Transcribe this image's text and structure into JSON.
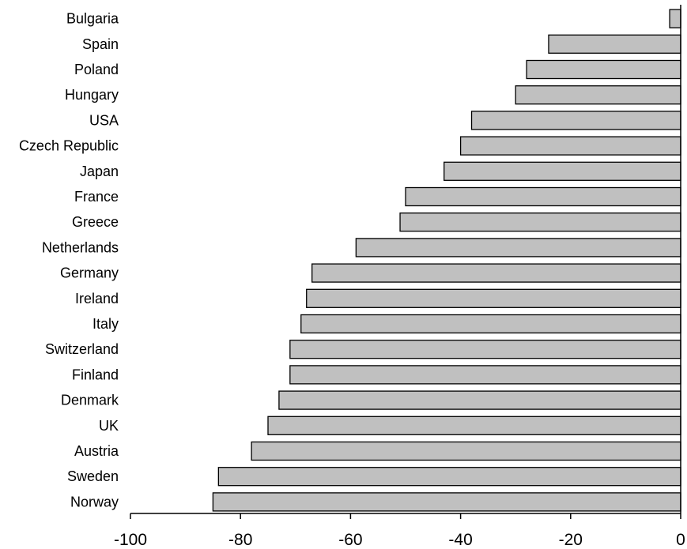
{
  "chart_data": {
    "type": "bar",
    "orientation": "horizontal",
    "title": "",
    "xlabel": "",
    "ylabel": "",
    "categories": [
      "Bulgaria",
      "Spain",
      "Poland",
      "Hungary",
      "USA",
      "Czech Republic",
      "Japan",
      "France",
      "Greece",
      "Netherlands",
      "Germany",
      "Ireland",
      "Italy",
      "Switzerland",
      "Finland",
      "Denmark",
      "UK",
      "Austria",
      "Sweden",
      "Norway"
    ],
    "values": [
      -2,
      -24,
      -28,
      -30,
      -38,
      -40,
      -43,
      -50,
      -51,
      -59,
      -67,
      -68,
      -69,
      -71,
      -71,
      -73,
      -75,
      -78,
      -84,
      -85
    ],
    "xlim": [
      -100,
      0
    ],
    "xticks": [
      -100,
      -80,
      -60,
      -40,
      -20,
      0
    ],
    "grid": false,
    "colors": {
      "bar_fill": "#c0c0c0",
      "bar_stroke": "#000000"
    }
  }
}
